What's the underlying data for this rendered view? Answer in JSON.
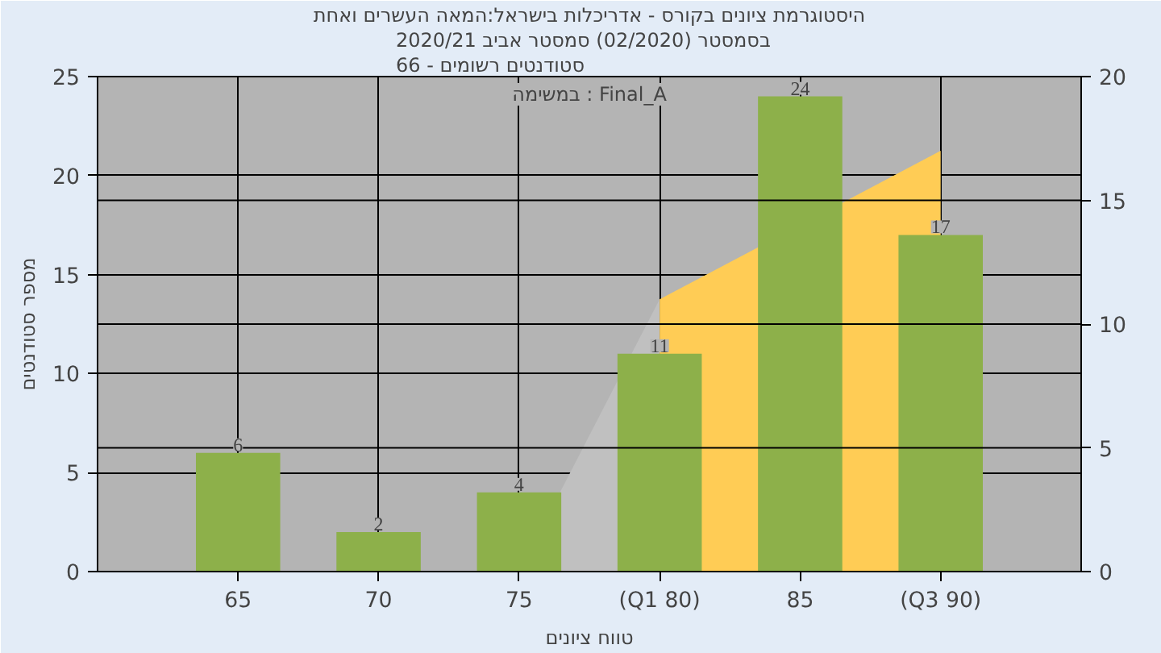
{
  "chart_data": {
    "type": "bar",
    "title": "היסטוגרמת ציונים בקורס - אדריכלות בישראל:המאה העשרים ואחת",
    "subtitle": "בסמסטר  (02/2020)  סמסטר אביב 2020/21\nסטודנטים רשומים - 66",
    "xlabel": "טווח ציונים",
    "ylabel": "מספר סטודנטים",
    "annotations": [
      "במשימה : Final_A"
    ],
    "categories": [
      "65",
      "70",
      "75",
      "(Q1 80)",
      "85",
      "(Q3 90)"
    ],
    "series": [
      {
        "type": "area",
        "axis": "y2",
        "color": "#c0c0c0",
        "values": [
          null,
          null,
          0,
          11,
          null,
          null
        ]
      },
      {
        "type": "area",
        "axis": "y2",
        "color": "#ffcc55",
        "values": [
          null,
          null,
          null,
          11,
          null,
          17
        ]
      },
      {
        "color": "#8db04a",
        "values": [
          6,
          2,
          4,
          11,
          24,
          17
        ],
        "value_labels": [
          "6",
          "2",
          "4",
          "11",
          "24",
          "17"
        ]
      }
    ],
    "ylim": [
      0,
      25
    ],
    "yticks": [
      0,
      5,
      10,
      15,
      20,
      25
    ],
    "y2lim": [
      0,
      20
    ],
    "y2ticks": [
      0,
      5,
      10,
      15,
      20
    ],
    "grid": true
  }
}
